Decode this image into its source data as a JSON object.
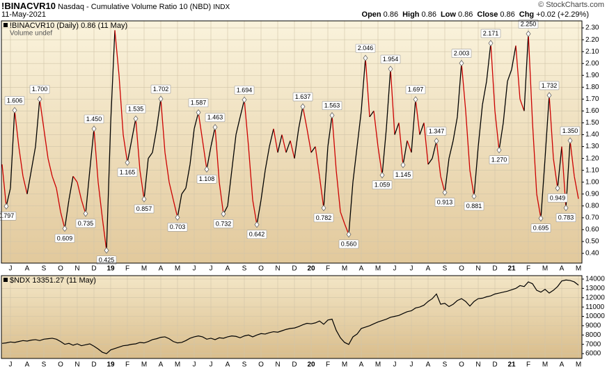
{
  "header": {
    "symbol": "!BINACVR10",
    "name": "Nasdaq - Cumulative Volume Ratio 10 (NBD)",
    "exchange": "INDX",
    "date": "11-May-2021",
    "copyright": "© StockCharts.com",
    "quote": [
      {
        "label": "Open",
        "value": "0.86"
      },
      {
        "label": "High",
        "value": "0.86"
      },
      {
        "label": "Low",
        "value": "0.86"
      },
      {
        "label": "Close",
        "value": "0.86"
      },
      {
        "label": "Chg",
        "value": "+0.02 (+2.29%)"
      }
    ]
  },
  "chart_data": [
    {
      "type": "line",
      "legend_note": "Volume undef",
      "grid": true,
      "up_color": "#000000",
      "categories": [
        null,
        null,
        "J",
        null,
        null,
        null,
        "A",
        null,
        null,
        null,
        "S",
        null,
        null,
        null,
        "O",
        null,
        null,
        null,
        "N",
        null,
        null,
        null,
        "D",
        null,
        null,
        null,
        "19",
        null,
        null,
        null,
        "F",
        null,
        null,
        null,
        "M",
        null,
        null,
        null,
        "A",
        null,
        null,
        null,
        "M",
        null,
        null,
        null,
        "J",
        null,
        null,
        null,
        "J",
        null,
        null,
        null,
        "A",
        null,
        null,
        null,
        "S",
        null,
        null,
        null,
        "O",
        null,
        null,
        null,
        "N",
        null,
        null,
        null,
        "D",
        null,
        null,
        null,
        "20",
        null,
        null,
        null,
        "F",
        null,
        null,
        null,
        "M",
        null,
        null,
        null,
        "A",
        null,
        null,
        null,
        "M",
        null,
        null,
        null,
        "J",
        null,
        null,
        null,
        "J",
        null,
        null,
        null,
        "A",
        null,
        null,
        null,
        "S",
        null,
        null,
        null,
        "O",
        null,
        null,
        null,
        "N",
        null,
        null,
        null,
        "D",
        null,
        null,
        null,
        "21",
        null,
        null,
        null,
        "F",
        null,
        null,
        null,
        "M",
        null,
        null,
        null,
        "A",
        null,
        null,
        null,
        "M"
      ],
      "series": [
        {
          "name": "!BINACVR10 (Daily) 0.86 (11 May)",
          "color": "#cc0000",
          "values": [
            1.15,
            0.797,
            0.95,
            1.606,
            1.3,
            1.05,
            0.9,
            1.1,
            1.3,
            1.7,
            1.45,
            1.2,
            1.05,
            0.95,
            0.75,
            0.609,
            0.85,
            1.05,
            1.0,
            0.85,
            0.735,
            1.1,
            1.45,
            1.0,
            0.7,
            0.425,
            1.5,
            2.28,
            1.9,
            1.4,
            1.165,
            1.35,
            1.535,
            1.1,
            0.857,
            1.2,
            1.25,
            1.45,
            1.702,
            1.25,
            1.0,
            0.85,
            0.703,
            0.9,
            0.95,
            1.15,
            1.45,
            1.587,
            1.35,
            1.108,
            1.3,
            1.463,
            1.0,
            0.732,
            0.8,
            1.1,
            1.4,
            1.55,
            1.694,
            1.3,
            0.85,
            0.642,
            0.85,
            1.1,
            1.3,
            1.45,
            1.25,
            1.4,
            1.25,
            1.35,
            1.2,
            1.45,
            1.637,
            1.45,
            1.25,
            1.3,
            1.05,
            0.782,
            1.3,
            1.563,
            1.1,
            0.75,
            0.65,
            0.56,
            1.0,
            1.3,
            1.6,
            2.046,
            1.55,
            1.6,
            1.3,
            1.059,
            1.45,
            1.954,
            1.4,
            1.5,
            1.145,
            1.35,
            1.25,
            1.697,
            1.4,
            1.5,
            1.15,
            1.2,
            1.347,
            1.05,
            0.913,
            1.2,
            1.35,
            1.55,
            2.003,
            1.6,
            1.1,
            0.881,
            1.3,
            1.65,
            1.85,
            2.171,
            1.6,
            1.27,
            1.5,
            1.85,
            1.95,
            2.15,
            1.7,
            1.6,
            2.25,
            1.5,
            0.9,
            0.695,
            1.2,
            1.732,
            1.2,
            0.949,
            1.3,
            0.783,
            1.35,
            1.05,
            0.86
          ],
          "value_labels": [
            null,
            "0.797",
            null,
            "1.606",
            null,
            null,
            null,
            null,
            null,
            "1.700",
            null,
            null,
            null,
            null,
            null,
            "0.609",
            null,
            null,
            null,
            null,
            "0.735",
            null,
            "1.450",
            null,
            null,
            "0.425",
            null,
            null,
            null,
            null,
            "1.165",
            null,
            "1.535",
            null,
            "0.857",
            null,
            null,
            null,
            "1.702",
            null,
            null,
            null,
            "0.703",
            null,
            null,
            null,
            null,
            "1.587",
            null,
            "1.108",
            null,
            "1.463",
            null,
            "0.732",
            null,
            null,
            null,
            null,
            "1.694",
            null,
            null,
            "0.642",
            null,
            null,
            null,
            null,
            null,
            null,
            null,
            null,
            null,
            null,
            "1.637",
            null,
            null,
            null,
            null,
            "0.782",
            null,
            "1.563",
            null,
            null,
            null,
            "0.560",
            null,
            null,
            null,
            "2.046",
            null,
            null,
            null,
            "1.059",
            null,
            "1.954",
            null,
            null,
            "1.145",
            null,
            null,
            "1.697",
            null,
            null,
            null,
            null,
            "1.347",
            null,
            "0.913",
            null,
            null,
            null,
            "2.003",
            null,
            null,
            "0.881",
            null,
            null,
            null,
            "2.171",
            null,
            "1.270",
            null,
            null,
            null,
            null,
            null,
            null,
            "2.250",
            null,
            null,
            "0.695",
            null,
            "1.732",
            null,
            "0.949",
            null,
            "0.783",
            "1.350",
            null,
            null
          ]
        }
      ],
      "ylim": [
        0.318,
        2.359
      ],
      "yticks": [
        {
          "value": 0.4,
          "label": "0.40"
        },
        {
          "value": 0.5,
          "label": "0.50"
        },
        {
          "value": 0.6,
          "label": "0.60"
        },
        {
          "value": 0.7,
          "label": "0.70"
        },
        {
          "value": 0.8,
          "label": "0.80"
        },
        {
          "value": 0.9,
          "label": "0.90"
        },
        {
          "value": 1.0,
          "label": "1.00"
        },
        {
          "value": 1.1,
          "label": "1.10"
        },
        {
          "value": 1.2,
          "label": "1.20"
        },
        {
          "value": 1.3,
          "label": "1.30"
        },
        {
          "value": 1.4,
          "label": "1.40"
        },
        {
          "value": 1.5,
          "label": "1.50"
        },
        {
          "value": 1.6,
          "label": "1.60"
        },
        {
          "value": 1.7,
          "label": "1.70"
        },
        {
          "value": 1.8,
          "label": "1.80"
        },
        {
          "value": 1.9,
          "label": "1.90"
        },
        {
          "value": 2.0,
          "label": "2.00"
        },
        {
          "value": 2.1,
          "label": "2.10"
        },
        {
          "value": 2.2,
          "label": "2.20"
        },
        {
          "value": 2.3,
          "label": "2.30"
        }
      ]
    },
    {
      "type": "line",
      "grid": true,
      "categories": [
        null,
        null,
        "J",
        null,
        null,
        null,
        "A",
        null,
        null,
        null,
        "S",
        null,
        null,
        null,
        "O",
        null,
        null,
        null,
        "N",
        null,
        null,
        null,
        "D",
        null,
        null,
        null,
        "19",
        null,
        null,
        null,
        "F",
        null,
        null,
        null,
        "M",
        null,
        null,
        null,
        "A",
        null,
        null,
        null,
        "M",
        null,
        null,
        null,
        "J",
        null,
        null,
        null,
        "J",
        null,
        null,
        null,
        "A",
        null,
        null,
        null,
        "S",
        null,
        null,
        null,
        "O",
        null,
        null,
        null,
        "N",
        null,
        null,
        null,
        "D",
        null,
        null,
        null,
        "20",
        null,
        null,
        null,
        "F",
        null,
        null,
        null,
        "M",
        null,
        null,
        null,
        "A",
        null,
        null,
        null,
        "M",
        null,
        null,
        null,
        "J",
        null,
        null,
        null,
        "J",
        null,
        null,
        null,
        "A",
        null,
        null,
        null,
        "S",
        null,
        null,
        null,
        "O",
        null,
        null,
        null,
        "N",
        null,
        null,
        null,
        "D",
        null,
        null,
        null,
        "21",
        null,
        null,
        null,
        "F",
        null,
        null,
        null,
        "M",
        null,
        null,
        null,
        "A",
        null,
        null,
        null,
        "M"
      ],
      "series": [
        {
          "name": "$NDX 13351.27 (11 May)",
          "color": "#000000",
          "values": [
            7100,
            7150,
            7250,
            7200,
            7300,
            7400,
            7350,
            7450,
            7500,
            7400,
            7550,
            7600,
            7650,
            7550,
            7300,
            7000,
            7100,
            6900,
            7050,
            6850,
            6950,
            7050,
            6800,
            6500,
            6150,
            6000,
            6400,
            6550,
            6700,
            6850,
            6900,
            7000,
            7050,
            7200,
            7150,
            7300,
            7500,
            7600,
            7750,
            7800,
            7600,
            7300,
            7150,
            7200,
            7400,
            7650,
            7800,
            7900,
            7800,
            7550,
            7650,
            7500,
            7700,
            7650,
            7800,
            7900,
            7850,
            7700,
            7900,
            8000,
            7800,
            8000,
            8150,
            8100,
            8250,
            8350,
            8300,
            8450,
            8600,
            8700,
            8750,
            8900,
            9100,
            9250,
            9200,
            9300,
            9500,
            9150,
            9600,
            9700,
            8500,
            7700,
            7200,
            6990,
            7800,
            8100,
            8700,
            8850,
            9000,
            9200,
            9400,
            9550,
            9700,
            9900,
            10000,
            10100,
            10300,
            10500,
            10600,
            10900,
            11000,
            11200,
            11600,
            11900,
            12400,
            11300,
            11400,
            11050,
            11300,
            11700,
            11900,
            11600,
            11100,
            11600,
            11900,
            11950,
            12100,
            12200,
            12400,
            12500,
            12600,
            12700,
            12850,
            13000,
            13300,
            13200,
            13700,
            13500,
            12800,
            12600,
            12900,
            12500,
            12800,
            13200,
            13800,
            13900,
            13850,
            13700,
            13351.27
          ]
        }
      ],
      "ylim": [
        5480,
        14370
      ],
      "yticks": [
        6000,
        7000,
        8000,
        9000,
        10000,
        11000,
        12000,
        13000,
        14000
      ]
    }
  ]
}
